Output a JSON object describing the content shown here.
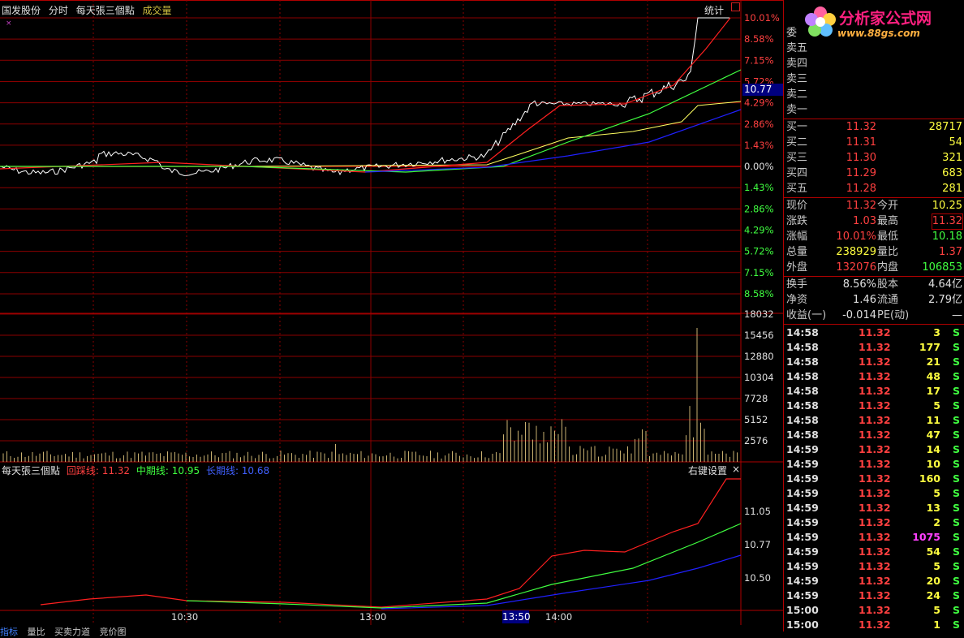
{
  "header": {
    "stock_name": "国发股份",
    "view": "分时",
    "indicator": "每天張三個點",
    "volume_label": "成交量",
    "stats_button": "统计"
  },
  "price_axis": {
    "right_labels": [
      "10.01%",
      "8.58%",
      "7.15%",
      "5.72%",
      "4.29%",
      "2.86%",
      "1.43%",
      "0.00%",
      "1.43%",
      "2.86%",
      "4.29%",
      "5.72%",
      "7.15%",
      "8.58%"
    ],
    "cursor_price": "10.77"
  },
  "volume_axis": {
    "labels": [
      "18032",
      "15456",
      "12880",
      "10304",
      "7728",
      "5152",
      "2576"
    ]
  },
  "indicator_pane": {
    "title": "每天張三個點",
    "line1_label": "回踩线: 11.32",
    "line2_label": "中期线: 10.95",
    "line3_label": "长期线: 10.68",
    "settings": "右键设置",
    "close": "×",
    "axis_labels": [
      "11.05",
      "10.77",
      "10.50"
    ]
  },
  "time_axis": {
    "labels": [
      "10:30",
      "13:00",
      "14:00"
    ],
    "cursor_time": "13:50"
  },
  "bottom_tabs": [
    "指标",
    "量比",
    "买卖力道",
    "竞价图"
  ],
  "logo": {
    "title": "分析家公式网",
    "url": "www.88gs.com"
  },
  "quote": {
    "weibi": "委",
    "sell": [
      {
        "label": "卖五"
      },
      {
        "label": "卖四"
      },
      {
        "label": "卖三"
      },
      {
        "label": "卖二"
      },
      {
        "label": "卖一"
      }
    ],
    "buy": [
      {
        "label": "买一",
        "price": "11.32",
        "vol": "28717"
      },
      {
        "label": "买二",
        "price": "11.31",
        "vol": "54"
      },
      {
        "label": "买三",
        "price": "11.30",
        "vol": "321"
      },
      {
        "label": "买四",
        "price": "11.29",
        "vol": "683"
      },
      {
        "label": "买五",
        "price": "11.28",
        "vol": "281"
      }
    ],
    "stats1": [
      {
        "l1": "现价",
        "v1": "11.32",
        "c1": "#ff4040",
        "l2": "今开",
        "v2": "10.25",
        "c2": "#ffff40"
      },
      {
        "l1": "涨跌",
        "v1": "1.03",
        "c1": "#ff4040",
        "l2": "最高",
        "v2": "11.32",
        "c2": "#ff4040"
      },
      {
        "l1": "涨幅",
        "v1": "10.01%",
        "c1": "#ff4040",
        "l2": "最低",
        "v2": "10.18",
        "c2": "#40ff40"
      },
      {
        "l1": "总量",
        "v1": "238929",
        "c1": "#ffff40",
        "l2": "量比",
        "v2": "1.37",
        "c2": "#ff4040"
      },
      {
        "l1": "外盘",
        "v1": "132076",
        "c1": "#ff4040",
        "l2": "内盘",
        "v2": "106853",
        "c2": "#40ff40"
      }
    ],
    "stats2": [
      {
        "l1": "换手",
        "v1": "8.56%",
        "l2": "股本",
        "v2": "4.64亿"
      },
      {
        "l1": "净资",
        "v1": "1.46",
        "l2": "流通",
        "v2": "2.79亿"
      },
      {
        "l1": "收益(一)",
        "v1": "-0.014",
        "l2": "PE(动)",
        "v2": "—"
      }
    ]
  },
  "ticks": [
    {
      "t": "14:58",
      "p": "11.32",
      "v": "3",
      "s": "S",
      "vc": "#ffff40"
    },
    {
      "t": "14:58",
      "p": "11.32",
      "v": "177",
      "s": "S",
      "vc": "#ffff40"
    },
    {
      "t": "14:58",
      "p": "11.32",
      "v": "21",
      "s": "S",
      "vc": "#ffff40"
    },
    {
      "t": "14:58",
      "p": "11.32",
      "v": "48",
      "s": "S",
      "vc": "#ffff40"
    },
    {
      "t": "14:58",
      "p": "11.32",
      "v": "17",
      "s": "S",
      "vc": "#ffff40"
    },
    {
      "t": "14:58",
      "p": "11.32",
      "v": "5",
      "s": "S",
      "vc": "#ffff40"
    },
    {
      "t": "14:58",
      "p": "11.32",
      "v": "11",
      "s": "S",
      "vc": "#ffff40"
    },
    {
      "t": "14:58",
      "p": "11.32",
      "v": "47",
      "s": "S",
      "vc": "#ffff40"
    },
    {
      "t": "14:59",
      "p": "11.32",
      "v": "14",
      "s": "S",
      "vc": "#ffff40"
    },
    {
      "t": "14:59",
      "p": "11.32",
      "v": "10",
      "s": "S",
      "vc": "#ffff40"
    },
    {
      "t": "14:59",
      "p": "11.32",
      "v": "160",
      "s": "S",
      "vc": "#ffff40"
    },
    {
      "t": "14:59",
      "p": "11.32",
      "v": "5",
      "s": "S",
      "vc": "#ffff40"
    },
    {
      "t": "14:59",
      "p": "11.32",
      "v": "13",
      "s": "S",
      "vc": "#ffff40"
    },
    {
      "t": "14:59",
      "p": "11.32",
      "v": "2",
      "s": "S",
      "vc": "#ffff40"
    },
    {
      "t": "14:59",
      "p": "11.32",
      "v": "1075",
      "s": "S",
      "vc": "#ff40ff"
    },
    {
      "t": "14:59",
      "p": "11.32",
      "v": "54",
      "s": "S",
      "vc": "#ffff40"
    },
    {
      "t": "14:59",
      "p": "11.32",
      "v": "5",
      "s": "S",
      "vc": "#ffff40"
    },
    {
      "t": "14:59",
      "p": "11.32",
      "v": "20",
      "s": "S",
      "vc": "#ffff40"
    },
    {
      "t": "14:59",
      "p": "11.32",
      "v": "24",
      "s": "S",
      "vc": "#ffff40"
    },
    {
      "t": "15:00",
      "p": "11.32",
      "v": "5",
      "s": "S",
      "vc": "#ffff40"
    },
    {
      "t": "15:00",
      "p": "11.32",
      "v": "1",
      "s": "S",
      "vc": "#ffff40"
    }
  ],
  "colors": {
    "grid": "#8b0000",
    "price_line": "#ffffff",
    "fast_line": "#ff2020",
    "mid_line": "#40ff40",
    "avg_line": "#ffff60",
    "slow_line": "#2020ff",
    "volume_bar": "#c8b070",
    "up": "#ff4040",
    "down": "#40ff40"
  }
}
